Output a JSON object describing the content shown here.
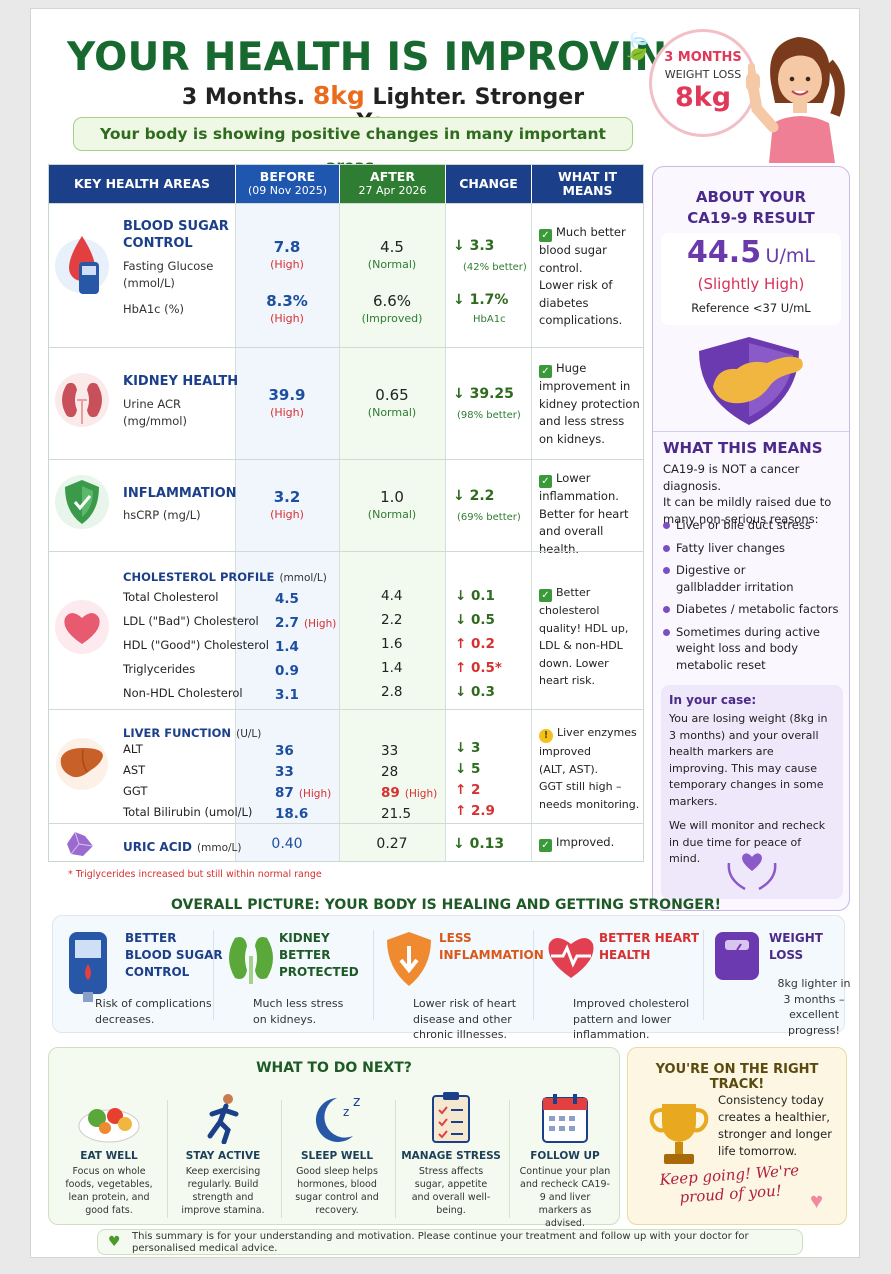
{
  "header": {
    "title": "YOUR HEALTH IS IMPROVING!",
    "subtitle_pre": "3 Months.",
    "subtitle_highlight": "8kg",
    "subtitle_post": "Lighter. Stronger You.",
    "banner": "Your body is showing positive changes in many important areas.",
    "badge_line1": "3 MONTHS",
    "badge_line2": "WEIGHT LOSS",
    "badge_value": "8kg"
  },
  "table": {
    "headers": {
      "areas": "KEY HEALTH AREAS",
      "before": "BEFORE",
      "before_date": "(09 Nov 2025)",
      "after": "AFTER",
      "after_date": "27 Apr 2026",
      "change": "CHANGE",
      "meaning": "WHAT IT MEANS"
    },
    "blood_sugar": {
      "title1": "BLOOD SUGAR",
      "title2": "CONTROL",
      "m1_label1": "Fasting Glucose",
      "m1_label2": "(mmol/L)",
      "m1_before": "7.8",
      "m1_before_tag": "(High)",
      "m1_after": "4.5",
      "m1_after_tag": "(Normal)",
      "m1_change": "↓ 3.3",
      "m1_change_sub": "(42% better)",
      "m2_label": "HbA1c (%)",
      "m2_before": "8.3%",
      "m2_before_tag": "(High)",
      "m2_after": "6.6%",
      "m2_after_tag": "(Improved)",
      "m2_change": "↓ 1.7%",
      "m2_change_sub": "HbA1c",
      "meaning1": "Much better",
      "meaning2": "blood sugar",
      "meaning3": "control.",
      "meaning4": "Lower risk of",
      "meaning5": "diabetes",
      "meaning6": "complications."
    },
    "kidney": {
      "title": "KIDNEY HEALTH",
      "label1": "Urine ACR",
      "label2": "(mg/mmol)",
      "before": "39.9",
      "before_tag": "(High)",
      "after": "0.65",
      "after_tag": "(Normal)",
      "change": "↓ 39.25",
      "change_sub": "(98% better)",
      "meaning1": "Huge",
      "meaning2": "improvement in",
      "meaning3": "kidney protection",
      "meaning4": "and less stress",
      "meaning5": "on kidneys."
    },
    "inflammation": {
      "title": "INFLAMMATION",
      "label": "hsCRP (mg/L)",
      "before": "3.2",
      "before_tag": "(High)",
      "after": "1.0",
      "after_tag": "(Normal)",
      "change": "↓ 2.2",
      "change_sub": "(69% better)",
      "meaning1": "Lower",
      "meaning2": "inflammation.",
      "meaning3": "Better for heart",
      "meaning4": "and overall health."
    },
    "cholesterol": {
      "title": "CHOLESTEROL PROFILE",
      "unit": "(mmol/L)",
      "rows": [
        {
          "label": "Total Cholesterol",
          "before": "4.5",
          "before_tag": "",
          "after": "4.4",
          "change": "↓ 0.1",
          "dir": "down"
        },
        {
          "label": "LDL (\"Bad\") Cholesterol",
          "before": "2.7",
          "before_tag": "(High)",
          "after": "2.2",
          "change": "↓ 0.5",
          "dir": "down"
        },
        {
          "label": "HDL (\"Good\") Cholesterol",
          "before": "1.4",
          "before_tag": "",
          "after": "1.6",
          "change": "↑ 0.2",
          "dir": "up"
        },
        {
          "label": "Triglycerides",
          "before": "0.9",
          "before_tag": "",
          "after": "1.4",
          "change": "↑ 0.5*",
          "dir": "up"
        },
        {
          "label": "Non-HDL Cholesterol",
          "before": "3.1",
          "before_tag": "",
          "after": "2.8",
          "change": "↓ 0.3",
          "dir": "down"
        }
      ],
      "meaning1": "Better cholesterol",
      "meaning2": "quality! HDL up,",
      "meaning3": "LDL & non-HDL",
      "meaning4": "down. Lower",
      "meaning5": "heart risk."
    },
    "liver": {
      "title": "LIVER FUNCTION",
      "unit": "(U/L)",
      "rows": [
        {
          "label": "ALT",
          "before": "36",
          "before_tag": "",
          "after": "33",
          "after_tag": "",
          "change": "↓ 3",
          "dir": "down"
        },
        {
          "label": "AST",
          "before": "33",
          "before_tag": "",
          "after": "28",
          "after_tag": "",
          "change": "↓ 5",
          "dir": "down"
        },
        {
          "label": "GGT",
          "before": "87",
          "before_tag": "(High)",
          "after": "89",
          "after_tag": "(High)",
          "change": "↑ 2",
          "dir": "up"
        },
        {
          "label": "Total Bilirubin (umol/L)",
          "before": "18.6",
          "before_tag": "",
          "after": "21.5",
          "after_tag": "",
          "change": "↑ 2.9",
          "dir": "up"
        }
      ],
      "meaning1": "Liver enzymes",
      "meaning2": "improved",
      "meaning3": "(ALT, AST).",
      "meaning4": "GGT still high –",
      "meaning5": "needs monitoring."
    },
    "uric": {
      "title": "URIC ACID",
      "unit": "(mmo/L)",
      "before": "0.40",
      "after": "0.27",
      "change": "↓ 0.13",
      "meaning": "Improved."
    },
    "footnote": "* Triglycerides increased but still within normal range"
  },
  "ca199": {
    "title1": "ABOUT YOUR",
    "title2": "CA19-9 RESULT",
    "value": "44.5",
    "unit": "U/mL",
    "status": "(Slightly High)",
    "reference": "Reference <37 U/mL",
    "means_title": "WHAT THIS MEANS",
    "means_text1": "CA19-9 is NOT a cancer diagnosis.",
    "means_text2": "It can be mildly raised due to",
    "means_text3": "many non-serious reasons:",
    "reasons": [
      "Liver or bile duct stress",
      "Fatty liver changes",
      "Digestive or gallbladder irritation",
      "Diabetes / metabolic factors",
      "Sometimes during active weight loss and body metabolic reset"
    ],
    "case_title": "In your case:",
    "case_text1": "You are losing weight (8kg in 3 months) and your overall health markers are improving. This may cause temporary changes in some markers.",
    "case_text2": "We will monitor and recheck in due time for peace of mind."
  },
  "overall": {
    "title": "OVERALL PICTURE: YOUR BODY IS HEALING AND GETTING STRONGER!",
    "items": [
      {
        "h1": "BETTER",
        "h2": "BLOOD SUGAR",
        "h3": "CONTROL",
        "t1": "Risk of complications",
        "t2": "decreases.",
        "color": "#1c3f8a"
      },
      {
        "h1": "KIDNEY",
        "h2": "BETTER",
        "h3": "PROTECTED",
        "t1": "Much less stress",
        "t2": "on kidneys.",
        "color": "#1d5a26"
      },
      {
        "h1": "LESS",
        "h2": "INFLAMMATION",
        "h3": "",
        "t1": "Lower risk of heart",
        "t2": "disease and other chronic illnesses.",
        "color": "#d8581c"
      },
      {
        "h1": "BETTER HEART",
        "h2": "HEALTH",
        "h3": "",
        "t1": "Improved cholesterol",
        "t2": "pattern and lower inflammation.",
        "color": "#d63030"
      },
      {
        "h1": "WEIGHT LOSS",
        "h2": "",
        "h3": "",
        "t1": "8kg lighter in",
        "t2": "3 months – excellent progress!",
        "color": "#4b2a8a"
      }
    ]
  },
  "next": {
    "title": "WHAT TO DO NEXT?",
    "items": [
      {
        "h": "EAT WELL",
        "t": "Focus on whole foods, vegetables, lean protein, and good fats."
      },
      {
        "h": "STAY ACTIVE",
        "t": "Keep exercising regularly. Build strength and improve stamina."
      },
      {
        "h": "SLEEP WELL",
        "t": "Good sleep helps hormones, blood sugar control and recovery."
      },
      {
        "h": "MANAGE STRESS",
        "t": "Stress affects sugar, appetite and overall well-being."
      },
      {
        "h": "FOLLOW UP",
        "t": "Continue your plan and recheck CA19-9 and liver markers as advised."
      }
    ]
  },
  "track": {
    "title": "YOU'RE ON THE RIGHT TRACK!",
    "text": "Consistency today creates a healthier, stronger and longer life tomorrow.",
    "script": "Keep going! We're proud of you!"
  },
  "disclaimer": "This summary is for your understanding and motivation. Please continue your treatment and follow up with your doctor for personalised medical advice.",
  "colors": {
    "title_green": "#17692f",
    "header_blue": "#1c3f8a",
    "header_green": "#2e7d32",
    "high_red": "#d63030",
    "purple": "#4b2a8a",
    "orange": "#ea6b1e"
  }
}
